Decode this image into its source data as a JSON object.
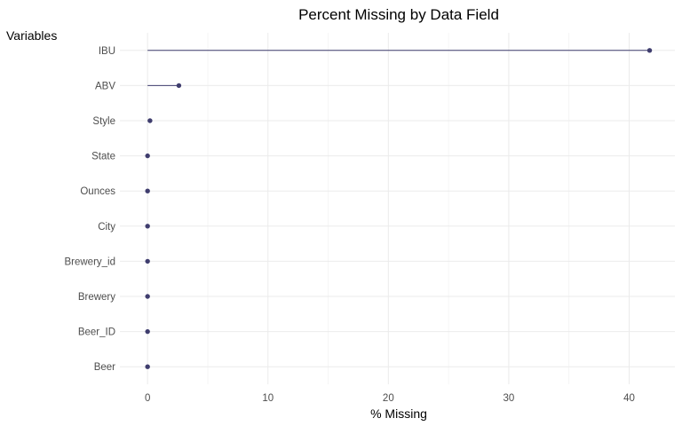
{
  "chart_data": {
    "type": "lollipop",
    "title": "Percent Missing by Data Field",
    "xlabel": "% Missing",
    "ylabel": "Variables",
    "xlim": [
      -2.3,
      43.8
    ],
    "x_ticks": [
      0,
      10,
      20,
      30,
      40
    ],
    "grid": true,
    "categories": [
      "IBU",
      "ABV",
      "Style",
      "State",
      "Ounces",
      "City",
      "Brewery_id",
      "Brewery",
      "Beer_ID",
      "Beer"
    ],
    "values": [
      41.7,
      2.6,
      0.2,
      0,
      0,
      0,
      0,
      0,
      0,
      0
    ],
    "colors": {
      "point": "#3f3d6e",
      "segment": "#3f3d6e",
      "grid_major": "#ebebeb",
      "grid_minor": "#f3f3f3"
    }
  }
}
